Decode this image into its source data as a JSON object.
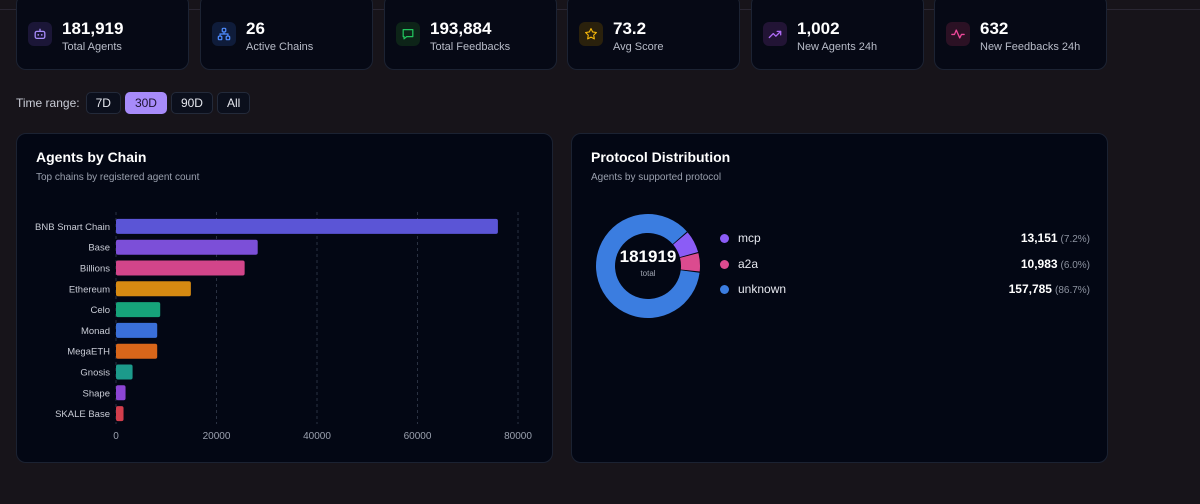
{
  "stats": [
    {
      "value": "181,919",
      "label": "Total Agents",
      "icon": "robot-icon",
      "color": "#a78bfa",
      "bg": "#1b1637"
    },
    {
      "value": "26",
      "label": "Active Chains",
      "icon": "network-icon",
      "color": "#4f8cff",
      "bg": "#0f1c3a"
    },
    {
      "value": "193,884",
      "label": "Total Feedbacks",
      "icon": "chat-icon",
      "color": "#22c55e",
      "bg": "#0d2418"
    },
    {
      "value": "73.2",
      "label": "Avg Score",
      "icon": "star-icon",
      "color": "#f5b70a",
      "bg": "#2a210c"
    },
    {
      "value": "1,002",
      "label": "New Agents 24h",
      "icon": "trend-up-icon",
      "color": "#b06cf7",
      "bg": "#221435"
    },
    {
      "value": "632",
      "label": "New Feedbacks 24h",
      "icon": "pulse-icon",
      "color": "#ec4899",
      "bg": "#2b1124"
    }
  ],
  "time_range": {
    "label": "Time range:",
    "options": [
      "7D",
      "30D",
      "90D",
      "All"
    ],
    "selected": "30D"
  },
  "agents_by_chain": {
    "title": "Agents by Chain",
    "subtitle": "Top chains by registered agent count"
  },
  "protocol_distribution": {
    "title": "Protocol Distribution",
    "subtitle": "Agents by supported protocol",
    "total": "181919",
    "total_label": "total",
    "items": [
      {
        "name": "mcp",
        "value": "13,151",
        "pct": "(7.2%)",
        "color": "#8b5cf6"
      },
      {
        "name": "a2a",
        "value": "10,983",
        "pct": "(6.0%)",
        "color": "#db4b8f"
      },
      {
        "name": "unknown",
        "value": "157,785",
        "pct": "(86.7%)",
        "color": "#3b7de0"
      }
    ]
  },
  "chart_data": [
    {
      "type": "bar",
      "orientation": "horizontal",
      "title": "Agents by Chain",
      "categories": [
        "BNB Smart Chain",
        "Base",
        "Billions",
        "Ethereum",
        "Celo",
        "Monad",
        "MegaETH",
        "Gnosis",
        "Shape",
        "SKALE Base"
      ],
      "values": [
        76000,
        28200,
        25600,
        14900,
        8800,
        8200,
        8200,
        3300,
        1900,
        1500
      ],
      "colors": [
        "#5b55d6",
        "#7c4fd8",
        "#d2458a",
        "#d68a12",
        "#16a37a",
        "#3a6fd9",
        "#d9661a",
        "#1c9a8b",
        "#8c45d4",
        "#d23e4c"
      ],
      "xlim": [
        0,
        80000
      ],
      "xticks": [
        0,
        20000,
        40000,
        60000,
        80000
      ],
      "grid": true
    },
    {
      "type": "pie",
      "variant": "donut",
      "title": "Protocol Distribution",
      "categories": [
        "mcp",
        "a2a",
        "unknown"
      ],
      "values": [
        13151,
        10983,
        157785
      ],
      "colors": [
        "#8b5cf6",
        "#db4b8f",
        "#3b7de0"
      ]
    }
  ]
}
